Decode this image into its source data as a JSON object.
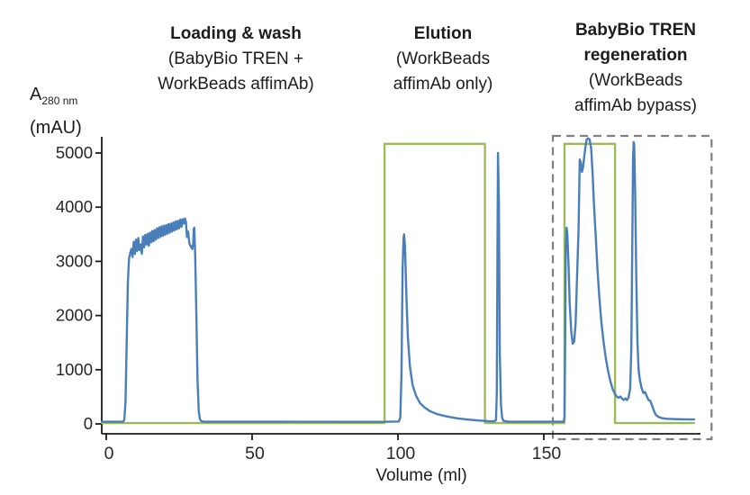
{
  "y_axis_label": {
    "main": "A",
    "sub": "280 nm",
    "unit": "(mAU)"
  },
  "sections": [
    {
      "lines": [
        "Loading & wash",
        "(BabyBio TREN +",
        "WorkBeads affimAb)"
      ]
    },
    {
      "lines": [
        "Elution",
        "(WorkBeads",
        "affimAb only)"
      ]
    },
    {
      "lines": [
        "BabyBio TREN",
        "regeneration",
        "(WorkBeads",
        "affimAb bypass)"
      ]
    }
  ],
  "chart_data": {
    "type": "line",
    "title": "",
    "xlabel": "Volume (ml)",
    "ylabel": "A280 nm (mAU)",
    "xlim": [
      -1.5,
      207.5
    ],
    "ylim": [
      0,
      5450
    ],
    "x_ticks": [
      0,
      50,
      100,
      150
    ],
    "y_ticks": [
      0,
      1000,
      2000,
      3000,
      4000,
      5000
    ],
    "grid": false,
    "legend": "none",
    "colors": {
      "uv_trace": "#4a7ebb",
      "step_trace": "#9bbb59",
      "highlight_box": "#7f7f7f",
      "axis": "#1a1a1a"
    },
    "highlight_box": {
      "label": "BabyBio TREN regeneration region",
      "x_range_ml": [
        153.1,
        207.5
      ]
    },
    "series": [
      {
        "name": "step-signal-green",
        "color": "#9bbb59",
        "points": [
          [
            -1.5,
            15
          ],
          [
            95.4,
            15
          ],
          [
            95.4,
            5170
          ],
          [
            129.8,
            5170
          ],
          [
            129.8,
            15
          ],
          [
            157.1,
            15
          ],
          [
            157.1,
            5170
          ],
          [
            174.4,
            5170
          ],
          [
            174.4,
            15
          ],
          [
            201.5,
            15
          ]
        ]
      },
      {
        "name": "uv-absorbance-a280-blue",
        "color": "#4a7ebb",
        "points": [
          [
            -1.5,
            40
          ],
          [
            5.8,
            40
          ],
          [
            6.2,
            80
          ],
          [
            6.6,
            400
          ],
          [
            7.0,
            1500
          ],
          [
            7.4,
            2600
          ],
          [
            7.8,
            3050
          ],
          [
            8.2,
            3150
          ],
          [
            8.6,
            3230
          ],
          [
            9.0,
            3080
          ],
          [
            9.4,
            3360
          ],
          [
            9.8,
            3140
          ],
          [
            10.2,
            3400
          ],
          [
            10.6,
            3190
          ],
          [
            11.0,
            3430
          ],
          [
            11.4,
            3210
          ],
          [
            11.8,
            3310
          ],
          [
            12.2,
            3140
          ],
          [
            12.6,
            3460
          ],
          [
            13.0,
            3260
          ],
          [
            13.4,
            3490
          ],
          [
            13.8,
            3310
          ],
          [
            14.2,
            3510
          ],
          [
            14.6,
            3290
          ],
          [
            15.0,
            3530
          ],
          [
            15.4,
            3350
          ],
          [
            15.8,
            3560
          ],
          [
            16.2,
            3370
          ],
          [
            16.6,
            3580
          ],
          [
            17.0,
            3400
          ],
          [
            17.4,
            3610
          ],
          [
            17.8,
            3430
          ],
          [
            18.2,
            3630
          ],
          [
            18.6,
            3450
          ],
          [
            19.0,
            3650
          ],
          [
            19.4,
            3470
          ],
          [
            19.8,
            3660
          ],
          [
            20.2,
            3490
          ],
          [
            20.6,
            3670
          ],
          [
            21.0,
            3510
          ],
          [
            21.4,
            3690
          ],
          [
            21.8,
            3530
          ],
          [
            22.2,
            3700
          ],
          [
            22.6,
            3550
          ],
          [
            23.0,
            3720
          ],
          [
            23.4,
            3570
          ],
          [
            23.8,
            3740
          ],
          [
            24.2,
            3590
          ],
          [
            24.6,
            3750
          ],
          [
            25.0,
            3610
          ],
          [
            25.4,
            3770
          ],
          [
            25.8,
            3640
          ],
          [
            26.2,
            3780
          ],
          [
            26.6,
            3700
          ],
          [
            27.0,
            3790
          ],
          [
            27.3,
            3730
          ],
          [
            27.7,
            3450
          ],
          [
            28.1,
            3550
          ],
          [
            28.5,
            3330
          ],
          [
            29.0,
            3270
          ],
          [
            29.5,
            3230
          ],
          [
            29.8,
            3330
          ],
          [
            30.0,
            3600
          ],
          [
            30.2,
            3620
          ],
          [
            30.5,
            3100
          ],
          [
            30.9,
            2000
          ],
          [
            31.3,
            800
          ],
          [
            31.7,
            250
          ],
          [
            32.1,
            90
          ],
          [
            32.6,
            50
          ],
          [
            33.5,
            40
          ],
          [
            60,
            40
          ],
          [
            95,
            38
          ],
          [
            100.3,
            45
          ],
          [
            100.8,
            120
          ],
          [
            101.2,
            900
          ],
          [
            101.6,
            2900
          ],
          [
            101.9,
            3430
          ],
          [
            102.1,
            3500
          ],
          [
            102.4,
            3280
          ],
          [
            102.9,
            2350
          ],
          [
            103.4,
            1600
          ],
          [
            104.1,
            1060
          ],
          [
            105,
            720
          ],
          [
            106.2,
            520
          ],
          [
            107.6,
            380
          ],
          [
            109.2,
            300
          ],
          [
            111,
            235
          ],
          [
            113.5,
            180
          ],
          [
            116.5,
            140
          ],
          [
            120,
            105
          ],
          [
            124,
            80
          ],
          [
            128,
            62
          ],
          [
            131,
            52
          ],
          [
            133,
            48
          ],
          [
            133.6,
            70
          ],
          [
            133.9,
            600
          ],
          [
            134.1,
            3200
          ],
          [
            134.3,
            5000
          ],
          [
            134.6,
            4100
          ],
          [
            134.9,
            1300
          ],
          [
            135.3,
            350
          ],
          [
            135.7,
            110
          ],
          [
            136.2,
            55
          ],
          [
            138,
            42
          ],
          [
            150,
            40
          ],
          [
            156.8,
            42
          ],
          [
            157.1,
            120
          ],
          [
            157.3,
            1500
          ],
          [
            157.5,
            3200
          ],
          [
            157.8,
            3620
          ],
          [
            158.1,
            3480
          ],
          [
            158.5,
            2900
          ],
          [
            158.9,
            2200
          ],
          [
            159.4,
            1700
          ],
          [
            159.9,
            1480
          ],
          [
            160.4,
            1520
          ],
          [
            160.9,
            1850
          ],
          [
            161.4,
            2700
          ],
          [
            161.9,
            3600
          ],
          [
            162.3,
            4880
          ],
          [
            162.7,
            4820
          ],
          [
            163.1,
            4650
          ],
          [
            163.5,
            4750
          ],
          [
            163.9,
            4950
          ],
          [
            164.3,
            5120
          ],
          [
            164.7,
            5250
          ],
          [
            165.2,
            5270
          ],
          [
            165.7,
            5250
          ],
          [
            166.2,
            5100
          ],
          [
            166.7,
            4650
          ],
          [
            167.2,
            4050
          ],
          [
            167.8,
            3450
          ],
          [
            168.4,
            2850
          ],
          [
            169.0,
            2350
          ],
          [
            169.7,
            1900
          ],
          [
            170.4,
            1550
          ],
          [
            171.2,
            1230
          ],
          [
            172.0,
            980
          ],
          [
            172.8,
            790
          ],
          [
            173.6,
            640
          ],
          [
            174.4,
            550
          ],
          [
            175.0,
            505
          ],
          [
            175.6,
            480
          ],
          [
            176.2,
            505
          ],
          [
            176.8,
            470
          ],
          [
            177.4,
            440
          ],
          [
            178.0,
            470
          ],
          [
            178.5,
            440
          ],
          [
            179.0,
            480
          ],
          [
            179.6,
            650
          ],
          [
            180.0,
            1400
          ],
          [
            180.3,
            3200
          ],
          [
            180.6,
            4900
          ],
          [
            180.8,
            5200
          ],
          [
            181.0,
            5150
          ],
          [
            181.3,
            4300
          ],
          [
            181.7,
            2700
          ],
          [
            182.1,
            1500
          ],
          [
            182.5,
            1000
          ],
          [
            182.9,
            820
          ],
          [
            183.5,
            670
          ],
          [
            184.1,
            570
          ],
          [
            184.7,
            590
          ],
          [
            185.3,
            510
          ],
          [
            185.9,
            440
          ],
          [
            186.5,
            425
          ],
          [
            187.1,
            340
          ],
          [
            187.7,
            250
          ],
          [
            188.3,
            175
          ],
          [
            189.1,
            135
          ],
          [
            190.2,
            110
          ],
          [
            192,
            95
          ],
          [
            195,
            88
          ],
          [
            198,
            84
          ],
          [
            201.5,
            82
          ]
        ]
      }
    ]
  }
}
